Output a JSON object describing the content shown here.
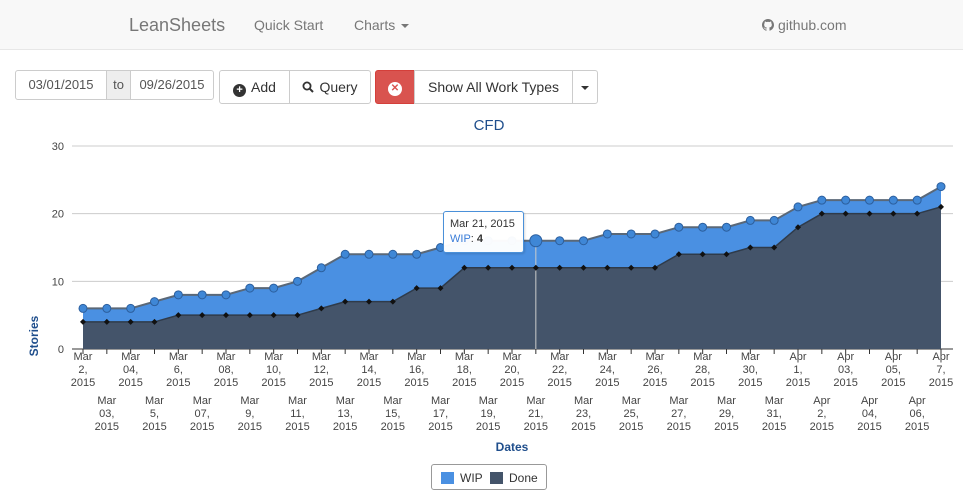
{
  "navbar": {
    "brand": "LeanSheets",
    "quick_start": "Quick Start",
    "charts": "Charts",
    "github": "github.com"
  },
  "toolbar": {
    "date_from": "03/01/2015",
    "date_to_label": "to",
    "date_to": "09/26/2015",
    "add_label": "Add",
    "query_label": "Query",
    "work_types_label": "Show All Work Types"
  },
  "tooltip": {
    "date": "Mar 21, 2015",
    "series": "WIP",
    "value": "4"
  },
  "colors": {
    "wip": "#4a90e2",
    "done": "#44546a",
    "danger": "#d9534f"
  },
  "chart_data": {
    "type": "area",
    "title": "CFD",
    "xlabel": "Dates",
    "ylabel": "Stories",
    "ylim": [
      0,
      30
    ],
    "yticks": [
      0,
      10,
      20,
      30
    ],
    "stacked": true,
    "legend_position": "bottom",
    "x": [
      "Mar 2, 2015",
      "Mar 03, 2015",
      "Mar 04, 2015",
      "Mar 5, 2015",
      "Mar 6, 2015",
      "Mar 07, 2015",
      "Mar 08, 2015",
      "Mar 9, 2015",
      "Mar 10, 2015",
      "Mar 11, 2015",
      "Mar 12, 2015",
      "Mar 13, 2015",
      "Mar 14, 2015",
      "Mar 15, 2015",
      "Mar 16, 2015",
      "Mar 17, 2015",
      "Mar 18, 2015",
      "Mar 19, 2015",
      "Mar 20, 2015",
      "Mar 21, 2015",
      "Mar 22, 2015",
      "Mar 23, 2015",
      "Mar 24, 2015",
      "Mar 25, 2015",
      "Mar 26, 2015",
      "Mar 27, 2015",
      "Mar 28, 2015",
      "Mar 29, 2015",
      "Mar 30, 2015",
      "Mar 31, 2015",
      "Apr 1, 2015",
      "Apr 2, 2015",
      "Apr 03, 2015",
      "Apr 04, 2015",
      "Apr 05, 2015",
      "Apr 06, 2015",
      "Apr 7, 2015"
    ],
    "x_tick_labels_upper": [
      [
        "Mar",
        "2,",
        "2015"
      ],
      [
        "Mar",
        "04,",
        "2015"
      ],
      [
        "Mar",
        "6,",
        "2015"
      ],
      [
        "Mar",
        "08,",
        "2015"
      ],
      [
        "Mar",
        "10,",
        "2015"
      ],
      [
        "Mar",
        "12,",
        "2015"
      ],
      [
        "Mar",
        "14,",
        "2015"
      ],
      [
        "Mar",
        "16,",
        "2015"
      ],
      [
        "Mar",
        "18,",
        "2015"
      ],
      [
        "Mar",
        "20,",
        "2015"
      ],
      [
        "Mar",
        "22,",
        "2015"
      ],
      [
        "Mar",
        "24,",
        "2015"
      ],
      [
        "Mar",
        "26,",
        "2015"
      ],
      [
        "Mar",
        "28,",
        "2015"
      ],
      [
        "Mar",
        "30,",
        "2015"
      ],
      [
        "Apr",
        "1,",
        "2015"
      ],
      [
        "Apr",
        "03,",
        "2015"
      ],
      [
        "Apr",
        "05,",
        "2015"
      ],
      [
        "Apr",
        "7,",
        "2015"
      ]
    ],
    "x_tick_labels_lower": [
      [
        "Mar",
        "03,",
        "2015"
      ],
      [
        "Mar",
        "5,",
        "2015"
      ],
      [
        "Mar",
        "07,",
        "2015"
      ],
      [
        "Mar",
        "9,",
        "2015"
      ],
      [
        "Mar",
        "11,",
        "2015"
      ],
      [
        "Mar",
        "13,",
        "2015"
      ],
      [
        "Mar",
        "15,",
        "2015"
      ],
      [
        "Mar",
        "17,",
        "2015"
      ],
      [
        "Mar",
        "19,",
        "2015"
      ],
      [
        "Mar",
        "21,",
        "2015"
      ],
      [
        "Mar",
        "23,",
        "2015"
      ],
      [
        "Mar",
        "25,",
        "2015"
      ],
      [
        "Mar",
        "27,",
        "2015"
      ],
      [
        "Mar",
        "29,",
        "2015"
      ],
      [
        "Mar",
        "31,",
        "2015"
      ],
      [
        "Apr",
        "2,",
        "2015"
      ],
      [
        "Apr",
        "04,",
        "2015"
      ],
      [
        "Apr",
        "06,",
        "2015"
      ]
    ],
    "series": [
      {
        "name": "Done",
        "values": [
          4,
          4,
          4,
          4,
          5,
          5,
          5,
          5,
          5,
          5,
          6,
          7,
          7,
          7,
          9,
          9,
          12,
          12,
          12,
          12,
          12,
          12,
          12,
          12,
          12,
          14,
          14,
          14,
          15,
          15,
          18,
          20,
          20,
          20,
          20,
          20,
          21
        ]
      },
      {
        "name": "WIP",
        "values": [
          2,
          2,
          2,
          3,
          3,
          3,
          3,
          4,
          4,
          5,
          6,
          7,
          7,
          7,
          5,
          6,
          4,
          4,
          4,
          4,
          4,
          4,
          5,
          5,
          5,
          4,
          4,
          4,
          4,
          4,
          3,
          2,
          2,
          2,
          2,
          2,
          3
        ]
      }
    ],
    "highlight_index": 19
  }
}
